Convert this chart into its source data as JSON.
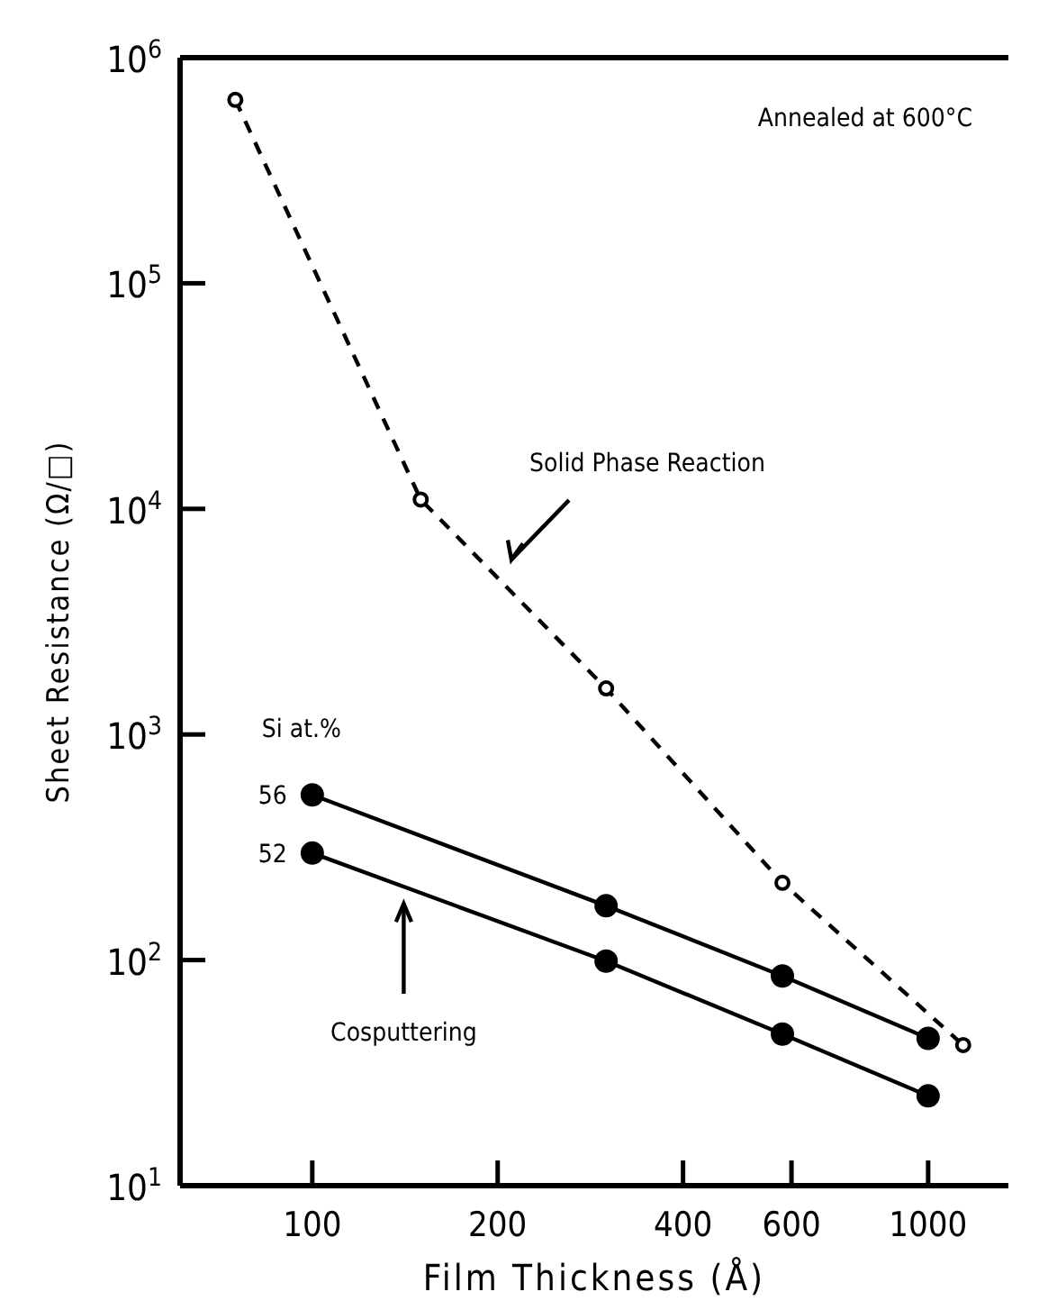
{
  "chart_data": {
    "type": "line",
    "xlabel": "Film Thickness (Å)",
    "ylabel": "Sheet Resistance (Ω/□)",
    "legend_title": "Si at.%",
    "log": "xy",
    "marker": "circle",
    "xlim": [
      61,
      1350
    ],
    "ylim": [
      10,
      1000000
    ],
    "xticks": [
      100,
      200,
      400,
      600,
      1000
    ],
    "yticks": [
      {
        "value": 10,
        "label": "10$^{1}$"
      },
      {
        "value": 100,
        "label": "10$^{2}$"
      },
      {
        "value": 1000,
        "label": "10$^{3}$"
      },
      {
        "value": 10000,
        "label": "10$^{4}$"
      },
      {
        "value": 100000,
        "label": "10$^{5}$"
      },
      {
        "value": 1000000,
        "label": "10$^{6}$"
      }
    ],
    "series": [
      {
        "color": "#000000",
        "line_style": "dashed",
        "x": [
          75,
          150,
          300,
          580,
          1140
        ],
        "values": [
          650000,
          11000,
          1600,
          220,
          42
        ]
      },
      {
        "name": "56",
        "color": "#000000",
        "line_style": "solid",
        "x": [
          100,
          300,
          580,
          1000
        ],
        "values": [
          540,
          174,
          85,
          45
        ]
      },
      {
        "name": "52",
        "color": "#000000",
        "line_style": "solid",
        "x": [
          100,
          300,
          580,
          1000
        ],
        "values": [
          298,
          99,
          47,
          25
        ]
      }
    ],
    "annotations": [
      "Annealed at 600°C",
      "Solid Phase Reaction",
      "Cosputtering"
    ]
  }
}
